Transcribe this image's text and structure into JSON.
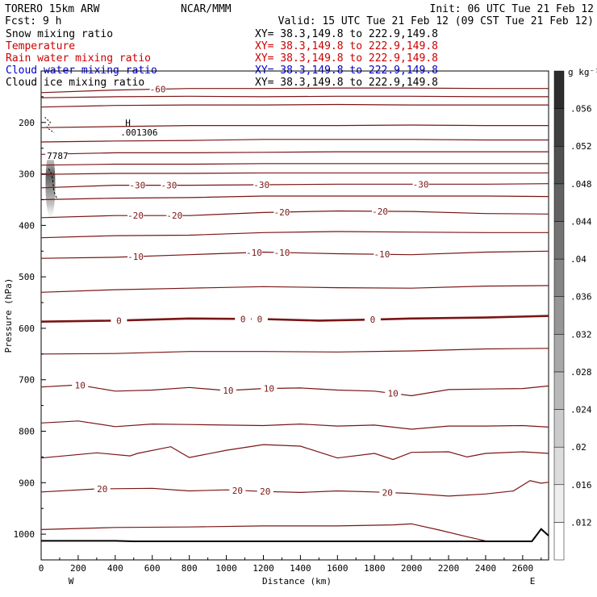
{
  "header": {
    "model": "TORERO  15km ARW",
    "center": "NCAR/MMM",
    "init": "Init: 06 UTC Tue 21 Feb 12",
    "fcst": "Fcst:    9 h",
    "valid": "Valid: 15 UTC Tue 21 Feb 12 (09 CST Tue 21 Feb 12)"
  },
  "fields": [
    {
      "name": "Snow mixing ratio",
      "xy": "XY=  38.3,149.8 to 222.9,149.8",
      "color": "#000000",
      "xy_color": "#000000"
    },
    {
      "name": "Temperature",
      "xy": "XY=  38.3,149.8 to 222.9,149.8",
      "color": "#cc0000",
      "xy_color": "#cc0000"
    },
    {
      "name": "Rain water mixing ratio",
      "xy": "XY=  38.3,149.8 to 222.9,149.8",
      "color": "#cc0000",
      "xy_color": "#cc0000"
    },
    {
      "name": "Cloud water mixing ratio",
      "xy": "XY=  38.3,149.8 to 222.9,149.8",
      "color": "#0000cc",
      "xy_color": "#0000cc"
    },
    {
      "name": "Cloud ice mixing ratio",
      "xy": "XY=  38.3,149.8 to 222.9,149.8",
      "color": "#000000",
      "xy_color": "#000000"
    }
  ],
  "colors": {
    "contour": "#7a1515",
    "terrain": "#000000"
  },
  "chart_data": {
    "type": "cross-section contour",
    "xlabel": "Distance (km)",
    "ylabel": "Pressure (hPa)",
    "x_ticks": [
      0,
      200,
      400,
      600,
      800,
      1000,
      1200,
      1400,
      1600,
      1800,
      2000,
      2200,
      2400,
      2600
    ],
    "y_ticks": [
      200,
      300,
      400,
      500,
      600,
      700,
      800,
      900,
      1000
    ],
    "xlim": [
      0,
      2740
    ],
    "ylim": [
      100,
      1050
    ],
    "left_end_label": "W",
    "right_end_label": "E",
    "temperature_contours": [
      {
        "level": -60,
        "label": "-60",
        "points": [
          [
            0,
            142
          ],
          [
            400,
            137
          ],
          [
            800,
            134
          ],
          [
            1200,
            134
          ],
          [
            1600,
            133
          ],
          [
            2000,
            133
          ],
          [
            2400,
            134
          ],
          [
            2740,
            134
          ]
        ]
      },
      {
        "level": -30,
        "label": "-30",
        "points": [
          [
            0,
            327
          ],
          [
            400,
            322
          ],
          [
            800,
            322
          ],
          [
            1200,
            321
          ],
          [
            1600,
            320
          ],
          [
            2000,
            320
          ],
          [
            2400,
            320
          ],
          [
            2740,
            319
          ]
        ]
      },
      {
        "level": -20,
        "label": "-20",
        "points": [
          [
            0,
            385
          ],
          [
            400,
            381
          ],
          [
            800,
            381
          ],
          [
            1200,
            375
          ],
          [
            1600,
            372
          ],
          [
            2000,
            373
          ],
          [
            2400,
            377
          ],
          [
            2740,
            378
          ]
        ]
      },
      {
        "level": -10,
        "label": "-10",
        "points": [
          [
            0,
            464
          ],
          [
            400,
            462
          ],
          [
            800,
            457
          ],
          [
            1200,
            452
          ],
          [
            1600,
            455
          ],
          [
            2000,
            457
          ],
          [
            2400,
            452
          ],
          [
            2740,
            450
          ]
        ]
      },
      {
        "level": 0,
        "label": "0",
        "points": [
          [
            0,
            587
          ],
          [
            400,
            585
          ],
          [
            800,
            581
          ],
          [
            1200,
            582
          ],
          [
            1500,
            585
          ],
          [
            1800,
            583
          ],
          [
            2000,
            581
          ],
          [
            2400,
            579
          ],
          [
            2740,
            576
          ]
        ]
      },
      {
        "level": 10,
        "label": "10",
        "points": [
          [
            0,
            714
          ],
          [
            200,
            710
          ],
          [
            400,
            722
          ],
          [
            600,
            720
          ],
          [
            800,
            715
          ],
          [
            1000,
            721
          ],
          [
            1200,
            717
          ],
          [
            1400,
            716
          ],
          [
            1600,
            720
          ],
          [
            1800,
            722
          ],
          [
            2000,
            731
          ],
          [
            2200,
            719
          ],
          [
            2400,
            718
          ],
          [
            2600,
            717
          ],
          [
            2740,
            712
          ]
        ]
      },
      {
        "level": 20,
        "label": "20",
        "points": [
          [
            0,
            918
          ],
          [
            300,
            912
          ],
          [
            600,
            911
          ],
          [
            800,
            916
          ],
          [
            1000,
            914
          ],
          [
            1200,
            917
          ],
          [
            1400,
            919
          ],
          [
            1600,
            916
          ],
          [
            1800,
            918
          ],
          [
            2000,
            921
          ],
          [
            2200,
            926
          ],
          [
            2400,
            922
          ],
          [
            2550,
            916
          ],
          [
            2640,
            896
          ],
          [
            2700,
            901
          ],
          [
            2740,
            899
          ]
        ]
      }
    ],
    "extra_contours": [
      {
        "points": [
          [
            0,
            152
          ],
          [
            400,
            150
          ],
          [
            800,
            149
          ],
          [
            1200,
            150
          ],
          [
            1600,
            149
          ],
          [
            2000,
            149
          ],
          [
            2400,
            150
          ],
          [
            2740,
            150
          ]
        ]
      },
      {
        "points": [
          [
            0,
            170
          ],
          [
            400,
            167
          ],
          [
            800,
            166
          ],
          [
            1200,
            166
          ],
          [
            1600,
            165
          ],
          [
            2000,
            166
          ],
          [
            2400,
            166
          ],
          [
            2740,
            166
          ]
        ]
      },
      {
        "points": [
          [
            0,
            210
          ],
          [
            400,
            208
          ],
          [
            800,
            206
          ],
          [
            1200,
            206
          ],
          [
            1600,
            206
          ],
          [
            2000,
            205
          ],
          [
            2400,
            206
          ],
          [
            2740,
            206
          ]
        ]
      },
      {
        "points": [
          [
            0,
            238
          ],
          [
            400,
            236
          ],
          [
            800,
            235
          ],
          [
            1200,
            233
          ],
          [
            1600,
            233
          ],
          [
            2000,
            233
          ],
          [
            2400,
            234
          ],
          [
            2740,
            234
          ]
        ]
      },
      {
        "points": [
          [
            0,
            262
          ],
          [
            400,
            259
          ],
          [
            800,
            259
          ],
          [
            1200,
            258
          ],
          [
            1600,
            257
          ],
          [
            2000,
            257
          ],
          [
            2400,
            257
          ],
          [
            2740,
            257
          ]
        ]
      },
      {
        "points": [
          [
            0,
            283
          ],
          [
            400,
            281
          ],
          [
            800,
            281
          ],
          [
            1200,
            280
          ],
          [
            1600,
            280
          ],
          [
            2000,
            280
          ],
          [
            2400,
            280
          ],
          [
            2740,
            280
          ]
        ]
      },
      {
        "points": [
          [
            0,
            301
          ],
          [
            400,
            299
          ],
          [
            800,
            299
          ],
          [
            1200,
            298
          ],
          [
            1600,
            298
          ],
          [
            2000,
            298
          ],
          [
            2400,
            298
          ],
          [
            2740,
            298
          ]
        ]
      },
      {
        "points": [
          [
            0,
            350
          ],
          [
            400,
            347
          ],
          [
            800,
            346
          ],
          [
            1200,
            343
          ],
          [
            1600,
            343
          ],
          [
            2000,
            343
          ],
          [
            2400,
            343
          ],
          [
            2740,
            344
          ]
        ]
      },
      {
        "points": [
          [
            0,
            424
          ],
          [
            400,
            420
          ],
          [
            800,
            419
          ],
          [
            1200,
            414
          ],
          [
            1600,
            412
          ],
          [
            2000,
            413
          ],
          [
            2400,
            414
          ],
          [
            2740,
            414
          ]
        ]
      },
      {
        "points": [
          [
            0,
            530
          ],
          [
            400,
            525
          ],
          [
            800,
            522
          ],
          [
            1200,
            519
          ],
          [
            1600,
            521
          ],
          [
            2000,
            522
          ],
          [
            2400,
            518
          ],
          [
            2740,
            517
          ]
        ]
      },
      {
        "points": [
          [
            0,
            650
          ],
          [
            400,
            649
          ],
          [
            800,
            645
          ],
          [
            1200,
            645
          ],
          [
            1600,
            646
          ],
          [
            2000,
            644
          ],
          [
            2400,
            640
          ],
          [
            2740,
            639
          ]
        ]
      },
      {
        "points": [
          [
            0,
            784
          ],
          [
            200,
            780
          ],
          [
            400,
            791
          ],
          [
            600,
            786
          ],
          [
            800,
            787
          ],
          [
            1000,
            788
          ],
          [
            1200,
            789
          ],
          [
            1400,
            786
          ],
          [
            1600,
            790
          ],
          [
            1800,
            788
          ],
          [
            2000,
            796
          ],
          [
            2200,
            790
          ],
          [
            2400,
            790
          ],
          [
            2600,
            789
          ],
          [
            2740,
            792
          ]
        ]
      },
      {
        "points": [
          [
            0,
            852
          ],
          [
            300,
            842
          ],
          [
            480,
            848
          ],
          [
            520,
            843
          ],
          [
            700,
            830
          ],
          [
            800,
            851
          ],
          [
            1000,
            837
          ],
          [
            1200,
            826
          ],
          [
            1400,
            829
          ],
          [
            1600,
            852
          ],
          [
            1800,
            843
          ],
          [
            1900,
            855
          ],
          [
            2000,
            841
          ],
          [
            2200,
            840
          ],
          [
            2300,
            850
          ],
          [
            2400,
            843
          ],
          [
            2600,
            840
          ],
          [
            2740,
            843
          ]
        ]
      },
      {
        "points": [
          [
            0,
            991
          ],
          [
            400,
            987
          ],
          [
            800,
            986
          ],
          [
            1200,
            984
          ],
          [
            1600,
            984
          ],
          [
            1900,
            982
          ],
          [
            2000,
            980
          ],
          [
            2150,
            992
          ],
          [
            2300,
            1005
          ],
          [
            2400,
            1013
          ]
        ]
      }
    ],
    "surface_pressure": [
      [
        0,
        1013
      ],
      [
        400,
        1013
      ],
      [
        500,
        1014
      ],
      [
        1000,
        1014
      ],
      [
        1500,
        1014
      ],
      [
        2000,
        1014
      ],
      [
        2500,
        1014
      ],
      [
        2650,
        1014
      ],
      [
        2700,
        990
      ],
      [
        2740,
        1003
      ]
    ],
    "snow_mixing_ratio_max": {
      "value": 0.001306,
      "label": ".001306",
      "marker": "H",
      "x": 480,
      "p": 210
    },
    "cloud_ice_label": {
      "label": "7787",
      "x": 40,
      "p": 268
    },
    "colorbar": {
      "unit": "g kg⁻¹",
      "levels": [
        0.012,
        0.016,
        0.02,
        0.024,
        0.028,
        0.032,
        0.036,
        0.04,
        0.044,
        0.048,
        0.052,
        0.056
      ],
      "tick_labels": [
        ".012",
        ".016",
        ".02",
        ".024",
        ".028",
        ".032",
        ".036",
        ".04",
        ".044",
        ".048",
        ".052",
        ".056"
      ],
      "range": [
        0.008,
        0.06
      ]
    }
  }
}
